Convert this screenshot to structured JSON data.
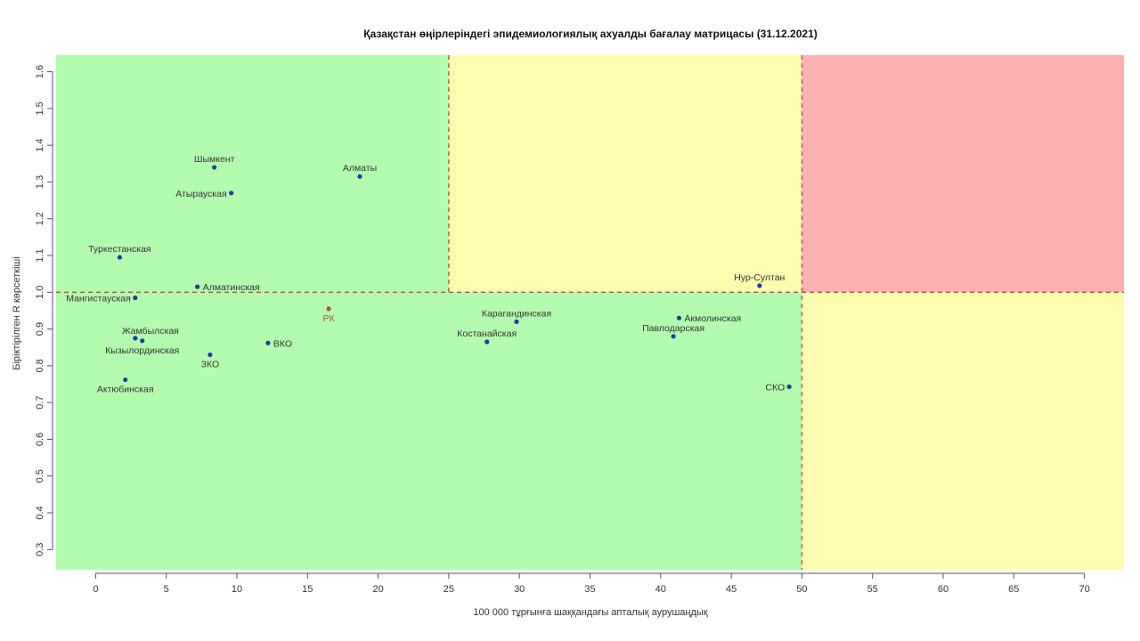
{
  "chart_data": {
    "type": "scatter",
    "title": "Қазақстан өңірлеріндегі эпидемиологиялық ахуалды бағалау матрицасы  (31.12.2021)",
    "xlabel": "100 000 тұрғынға шаққандағы апталық аурушаңдық",
    "ylabel": "Біріктірілген R көрсеткіші",
    "xlim": [
      -2.8,
      72.8
    ],
    "ylim": [
      0.245,
      1.645
    ],
    "x_ticks": [
      0,
      5,
      10,
      15,
      20,
      25,
      30,
      35,
      40,
      45,
      50,
      55,
      60,
      65,
      70
    ],
    "y_ticks": [
      0.3,
      0.4,
      0.5,
      0.6,
      0.7,
      0.8,
      0.9,
      1.0,
      1.1,
      1.2,
      1.3,
      1.4,
      1.5,
      1.6
    ],
    "thresholds": {
      "x": [
        25,
        50
      ],
      "y": 1.0
    },
    "zone_colors": {
      "green": "#b3fcaf",
      "yellow": "#fefcaf",
      "red": "#fdb0b2"
    },
    "point_color": "#1f3d9e",
    "national_point_color": "#b5503c",
    "points": [
      {
        "name": "Шымкент",
        "x": 8.4,
        "y": 1.34,
        "pos": "top"
      },
      {
        "name": "Алматы",
        "x": 18.7,
        "y": 1.315,
        "pos": "top"
      },
      {
        "name": "Атырауская",
        "x": 9.6,
        "y": 1.27,
        "pos": "left"
      },
      {
        "name": "Туркестанская",
        "x": 1.7,
        "y": 1.095,
        "pos": "top"
      },
      {
        "name": "Алматинская",
        "x": 7.2,
        "y": 1.015,
        "pos": "right"
      },
      {
        "name": "Мангистауская",
        "x": 2.8,
        "y": 0.985,
        "pos": "left"
      },
      {
        "name": "РК",
        "x": 16.5,
        "y": 0.955,
        "pos": "bottom",
        "national": true
      },
      {
        "name": "Жамбылская",
        "x": 2.8,
        "y": 0.875,
        "pos": "top-right"
      },
      {
        "name": "Кызылординская",
        "x": 3.3,
        "y": 0.868,
        "pos": "bottom"
      },
      {
        "name": "ВКО",
        "x": 12.2,
        "y": 0.862,
        "pos": "right"
      },
      {
        "name": "ЗКО",
        "x": 8.1,
        "y": 0.83,
        "pos": "bottom"
      },
      {
        "name": "Актюбинская",
        "x": 2.1,
        "y": 0.762,
        "pos": "bottom"
      },
      {
        "name": "Карагандинская",
        "x": 29.8,
        "y": 0.92,
        "pos": "top"
      },
      {
        "name": "Костанайская",
        "x": 27.7,
        "y": 0.865,
        "pos": "top"
      },
      {
        "name": "Акмолинская",
        "x": 41.3,
        "y": 0.93,
        "pos": "right"
      },
      {
        "name": "Павлодарская",
        "x": 40.9,
        "y": 0.88,
        "pos": "top"
      },
      {
        "name": "Нур-Султан",
        "x": 47.0,
        "y": 1.018,
        "pos": "top"
      },
      {
        "name": "СКО",
        "x": 49.1,
        "y": 0.743,
        "pos": "left"
      }
    ]
  }
}
